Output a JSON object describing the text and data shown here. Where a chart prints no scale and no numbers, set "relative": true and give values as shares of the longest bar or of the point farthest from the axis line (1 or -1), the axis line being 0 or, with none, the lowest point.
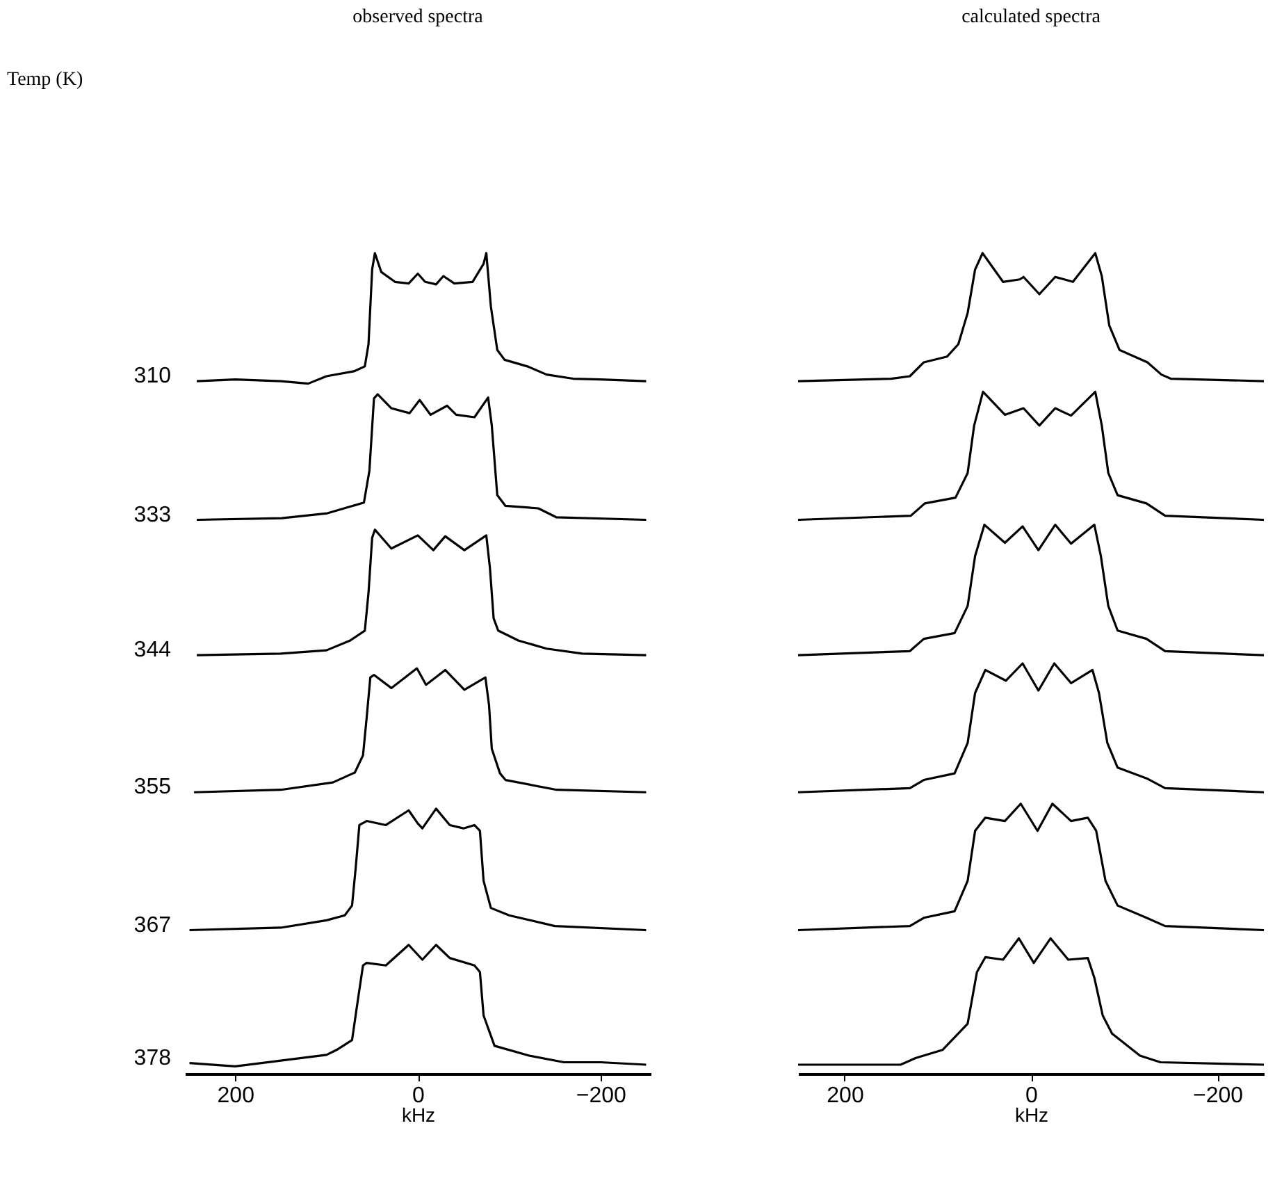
{
  "chart_data": [
    {
      "type": "line",
      "title": "observed spectra",
      "xlabel": "kHz",
      "relative": true,
      "xlim": [
        255,
        -255
      ],
      "xticks": [
        200,
        0,
        -200
      ],
      "line_style": "solid",
      "annotations": [
        "Temp (K)"
      ],
      "series": [
        {
          "name": "310",
          "color": "#000000",
          "x": [
            242,
            200,
            150,
            120,
            100,
            70,
            58,
            54,
            50,
            47,
            40,
            25,
            10,
            0,
            -8,
            -20,
            -28,
            -40,
            -60,
            -72,
            -75,
            -80,
            -87,
            -95,
            -120,
            -141,
            -170,
            -200,
            -250
          ],
          "values": [
            0.844,
            0.846,
            0.844,
            0.841,
            0.85,
            0.856,
            0.862,
            0.889,
            0.98,
            1.0,
            0.977,
            0.965,
            0.963,
            0.975,
            0.965,
            0.962,
            0.972,
            0.963,
            0.965,
            0.987,
            1.0,
            0.935,
            0.882,
            0.87,
            0.862,
            0.852,
            0.847,
            0.846,
            0.844
          ]
        },
        {
          "name": "333",
          "color": "#000000",
          "x": [
            242,
            149,
            99,
            59,
            53,
            48,
            44,
            29,
            9,
            -2,
            -14,
            -32,
            -42,
            -62,
            -77,
            -81,
            -87,
            -96,
            -132,
            -152,
            -250
          ],
          "values": [
            0.675,
            0.677,
            0.683,
            0.696,
            0.735,
            0.823,
            0.828,
            0.811,
            0.805,
            0.821,
            0.803,
            0.814,
            0.803,
            0.8,
            0.824,
            0.79,
            0.705,
            0.692,
            0.689,
            0.678,
            0.675
          ]
        },
        {
          "name": "344",
          "color": "#000000",
          "x": [
            242,
            150,
            100,
            74,
            58,
            54,
            50,
            47,
            29,
            0,
            -17,
            -30,
            -51,
            -75,
            -79,
            -83,
            -88,
            -110,
            -141,
            -180,
            -250
          ],
          "values": [
            0.51,
            0.512,
            0.516,
            0.528,
            0.54,
            0.586,
            0.653,
            0.663,
            0.64,
            0.656,
            0.638,
            0.655,
            0.638,
            0.656,
            0.616,
            0.555,
            0.54,
            0.528,
            0.518,
            0.512,
            0.51
          ]
        },
        {
          "name": "355",
          "color": "#000000",
          "x": [
            245,
            150,
            93,
            69,
            60,
            56,
            52,
            48,
            29,
            1,
            -9,
            -30,
            -51,
            -74,
            -78,
            -81,
            -90,
            -96,
            -152,
            -250
          ],
          "values": [
            0.343,
            0.346,
            0.355,
            0.367,
            0.388,
            0.434,
            0.483,
            0.486,
            0.47,
            0.494,
            0.474,
            0.492,
            0.468,
            0.483,
            0.449,
            0.396,
            0.366,
            0.358,
            0.346,
            0.343
          ]
        },
        {
          "name": "367",
          "color": "#000000",
          "x": [
            250,
            150,
            100,
            80,
            72,
            68,
            64,
            56,
            35,
            10,
            0,
            -5,
            -20,
            -35,
            -50,
            -62,
            -68,
            -72,
            -80,
            -100,
            -150,
            -250
          ],
          "values": [
            0.175,
            0.178,
            0.187,
            0.193,
            0.205,
            0.251,
            0.303,
            0.308,
            0.303,
            0.321,
            0.305,
            0.299,
            0.323,
            0.303,
            0.299,
            0.303,
            0.296,
            0.235,
            0.202,
            0.193,
            0.18,
            0.175
          ]
        },
        {
          "name": "378",
          "color": "#000000",
          "x": [
            250,
            200,
            150,
            100,
            89,
            72,
            66,
            60,
            56,
            35,
            10,
            -5,
            -20,
            -35,
            -62,
            -68,
            -72,
            -84,
            -122,
            -160,
            -200,
            -250
          ],
          "values": [
            0.013,
            0.009,
            0.016,
            0.023,
            0.029,
            0.041,
            0.087,
            0.132,
            0.135,
            0.132,
            0.157,
            0.139,
            0.157,
            0.141,
            0.132,
            0.124,
            0.071,
            0.034,
            0.022,
            0.014,
            0.014,
            0.011
          ]
        }
      ]
    },
    {
      "type": "line",
      "title": "calculated spectra",
      "xlabel": "kHz",
      "relative": true,
      "xlim": [
        250,
        -250
      ],
      "xticks": [
        200,
        0,
        -200
      ],
      "line_style": "solid",
      "series": [
        {
          "color": "#000000",
          "x": [
            250,
            150,
            130,
            115,
            90,
            78,
            68,
            60,
            52,
            30,
            12,
            8,
            -9,
            -26,
            -45,
            -69,
            -76,
            -84,
            -95,
            -125,
            -140,
            -150,
            -250
          ],
          "values": [
            0.844,
            0.847,
            0.85,
            0.867,
            0.874,
            0.889,
            0.927,
            0.98,
            1.0,
            0.965,
            0.968,
            0.971,
            0.95,
            0.971,
            0.965,
            1.0,
            0.972,
            0.912,
            0.882,
            0.867,
            0.852,
            0.847,
            0.844
          ]
        },
        {
          "color": "#000000",
          "x": [
            250,
            129,
            114,
            81,
            68,
            61,
            51.5,
            28,
            8,
            -9,
            -26,
            -43,
            -69,
            -76,
            -83,
            -93,
            -124,
            -144,
            -250
          ],
          "values": [
            0.675,
            0.68,
            0.695,
            0.702,
            0.732,
            0.79,
            0.831,
            0.803,
            0.811,
            0.79,
            0.811,
            0.802,
            0.831,
            0.79,
            0.732,
            0.705,
            0.695,
            0.68,
            0.675
          ]
        },
        {
          "color": "#000000",
          "x": [
            250,
            130,
            115,
            82,
            68,
            60,
            50,
            28,
            9,
            -8,
            -26,
            -43,
            -68,
            -75,
            -83,
            -93,
            -124,
            -144,
            -250
          ],
          "values": [
            0.51,
            0.515,
            0.53,
            0.537,
            0.57,
            0.631,
            0.669,
            0.647,
            0.667,
            0.638,
            0.669,
            0.646,
            0.669,
            0.631,
            0.57,
            0.54,
            0.53,
            0.515,
            0.51
          ]
        },
        {
          "color": "#000000",
          "x": [
            250,
            130,
            115,
            82,
            68,
            60,
            49,
            27,
            9,
            -8,
            -25,
            -43,
            -66,
            -73,
            -82,
            -93,
            -124,
            -144,
            -250
          ],
          "values": [
            0.343,
            0.348,
            0.358,
            0.366,
            0.403,
            0.464,
            0.492,
            0.479,
            0.5,
            0.467,
            0.5,
            0.476,
            0.492,
            0.464,
            0.403,
            0.373,
            0.36,
            0.348,
            0.343
          ]
        },
        {
          "color": "#000000",
          "x": [
            250,
            130,
            115,
            82,
            68,
            60,
            49,
            28,
            11,
            -7,
            -23,
            -43,
            -61,
            -70,
            -80,
            -93,
            -124,
            -144,
            -250
          ],
          "values": [
            0.175,
            0.18,
            0.19,
            0.198,
            0.235,
            0.296,
            0.312,
            0.308,
            0.329,
            0.296,
            0.329,
            0.308,
            0.312,
            0.296,
            0.235,
            0.205,
            0.19,
            0.18,
            0.175
          ]
        },
        {
          "color": "#000000",
          "x": [
            250,
            140,
            124,
            95,
            68,
            58,
            49,
            30,
            13,
            -3,
            -21,
            -40,
            -61,
            -68,
            -77,
            -87,
            -117,
            -139,
            -250
          ],
          "values": [
            0.011,
            0.011,
            0.019,
            0.029,
            0.061,
            0.124,
            0.142,
            0.139,
            0.165,
            0.135,
            0.165,
            0.139,
            0.141,
            0.117,
            0.071,
            0.049,
            0.022,
            0.014,
            0.011
          ]
        }
      ]
    }
  ]
}
